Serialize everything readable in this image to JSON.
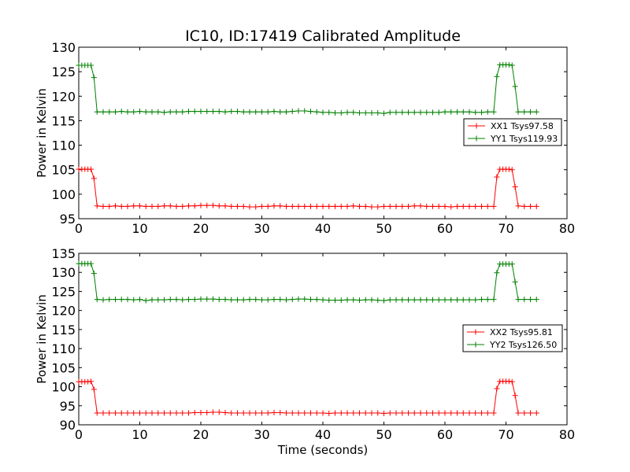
{
  "figure": {
    "title": "IC10, ID:17419 Calibrated Amplitude"
  },
  "chart_data": [
    {
      "type": "line",
      "title": "IC10, ID:17419 Calibrated Amplitude",
      "xlabel": "",
      "ylabel": "Power in Kelvin",
      "xlim": [
        0,
        80
      ],
      "ylim": [
        95,
        130
      ],
      "xticks": [
        0,
        10,
        20,
        30,
        40,
        50,
        60,
        70,
        80
      ],
      "yticks": [
        95,
        100,
        105,
        110,
        115,
        120,
        125,
        130
      ],
      "grid": false,
      "legend_position": "right",
      "series": [
        {
          "name": "XX1 Tsys97.58",
          "color": "#ff0000",
          "marker": "plus",
          "x": [
            0,
            0.5,
            1,
            1.5,
            2,
            2.5,
            3,
            4,
            5,
            6,
            7,
            8,
            9,
            10,
            11,
            12,
            13,
            14,
            15,
            16,
            17,
            18,
            19,
            20,
            21,
            22,
            23,
            24,
            25,
            26,
            27,
            28,
            29,
            30,
            31,
            32,
            33,
            34,
            35,
            36,
            37,
            38,
            39,
            40,
            41,
            42,
            43,
            44,
            45,
            46,
            47,
            48,
            49,
            50,
            51,
            52,
            53,
            54,
            55,
            56,
            57,
            58,
            59,
            60,
            61,
            62,
            63,
            64,
            65,
            66,
            67,
            68,
            68.5,
            69,
            69.5,
            70,
            70.5,
            71,
            71.5,
            72,
            73,
            74,
            75
          ],
          "y": [
            105.1,
            105.1,
            105.1,
            105.1,
            105.1,
            103.2,
            97.6,
            97.5,
            97.5,
            97.6,
            97.5,
            97.5,
            97.6,
            97.6,
            97.5,
            97.5,
            97.5,
            97.6,
            97.6,
            97.5,
            97.5,
            97.6,
            97.6,
            97.7,
            97.7,
            97.7,
            97.6,
            97.6,
            97.5,
            97.5,
            97.5,
            97.4,
            97.4,
            97.5,
            97.5,
            97.6,
            97.6,
            97.5,
            97.5,
            97.5,
            97.5,
            97.5,
            97.5,
            97.5,
            97.5,
            97.5,
            97.5,
            97.5,
            97.6,
            97.5,
            97.5,
            97.4,
            97.4,
            97.5,
            97.5,
            97.5,
            97.5,
            97.5,
            97.6,
            97.6,
            97.5,
            97.5,
            97.5,
            97.5,
            97.4,
            97.5,
            97.5,
            97.5,
            97.5,
            97.5,
            97.5,
            97.5,
            103.5,
            105.1,
            105.1,
            105.1,
            105.1,
            105.0,
            101.5,
            97.6,
            97.5,
            97.5,
            97.5
          ]
        },
        {
          "name": "YY1 Tsys119.93",
          "color": "#008000",
          "marker": "plus",
          "x": [
            0,
            0.5,
            1,
            1.5,
            2,
            2.5,
            3,
            4,
            5,
            6,
            7,
            8,
            9,
            10,
            11,
            12,
            13,
            14,
            15,
            16,
            17,
            18,
            19,
            20,
            21,
            22,
            23,
            24,
            25,
            26,
            27,
            28,
            29,
            30,
            31,
            32,
            33,
            34,
            35,
            36,
            37,
            38,
            39,
            40,
            41,
            42,
            43,
            44,
            45,
            46,
            47,
            48,
            49,
            50,
            51,
            52,
            53,
            54,
            55,
            56,
            57,
            58,
            59,
            60,
            61,
            62,
            63,
            64,
            65,
            66,
            67,
            68,
            68.5,
            69,
            69.5,
            70,
            70.5,
            71,
            71.5,
            72,
            73,
            74,
            75
          ],
          "y": [
            126.3,
            126.3,
            126.3,
            126.3,
            126.3,
            123.8,
            116.8,
            116.8,
            116.8,
            116.8,
            116.9,
            116.8,
            116.8,
            116.9,
            116.8,
            116.8,
            116.8,
            116.7,
            116.8,
            116.8,
            116.8,
            116.9,
            116.9,
            116.9,
            116.9,
            116.9,
            116.9,
            116.8,
            116.9,
            116.9,
            116.8,
            116.8,
            116.8,
            116.8,
            116.8,
            116.9,
            116.8,
            116.8,
            116.9,
            117.0,
            117.0,
            116.9,
            116.8,
            116.7,
            116.7,
            116.6,
            116.6,
            116.7,
            116.7,
            116.6,
            116.6,
            116.6,
            116.6,
            116.5,
            116.7,
            116.7,
            116.7,
            116.7,
            116.7,
            116.7,
            116.7,
            116.7,
            116.7,
            116.8,
            116.8,
            116.8,
            116.8,
            116.8,
            116.7,
            116.7,
            116.8,
            116.8,
            124.0,
            126.4,
            126.4,
            126.4,
            126.4,
            126.3,
            122.0,
            116.8,
            116.8,
            116.8,
            116.8
          ]
        }
      ]
    },
    {
      "type": "line",
      "title": "",
      "xlabel": "Time (seconds)",
      "ylabel": "Power in Kelvin",
      "xlim": [
        0,
        80
      ],
      "ylim": [
        90,
        135
      ],
      "xticks": [
        0,
        10,
        20,
        30,
        40,
        50,
        60,
        70,
        80
      ],
      "yticks": [
        90,
        95,
        100,
        105,
        110,
        115,
        120,
        125,
        130,
        135
      ],
      "grid": false,
      "legend_position": "right",
      "series": [
        {
          "name": "XX2 Tsys95.81",
          "color": "#ff0000",
          "marker": "plus",
          "x": [
            0,
            0.5,
            1,
            1.5,
            2,
            2.5,
            3,
            4,
            5,
            6,
            7,
            8,
            9,
            10,
            11,
            12,
            13,
            14,
            15,
            16,
            17,
            18,
            19,
            20,
            21,
            22,
            23,
            24,
            25,
            26,
            27,
            28,
            29,
            30,
            31,
            32,
            33,
            34,
            35,
            36,
            37,
            38,
            39,
            40,
            41,
            42,
            43,
            44,
            45,
            46,
            47,
            48,
            49,
            50,
            51,
            52,
            53,
            54,
            55,
            56,
            57,
            58,
            59,
            60,
            61,
            62,
            63,
            64,
            65,
            66,
            67,
            68,
            68.5,
            69,
            69.5,
            70,
            70.5,
            71,
            71.5,
            72,
            73,
            74,
            75
          ],
          "y": [
            101.3,
            101.3,
            101.3,
            101.3,
            101.4,
            99.3,
            93.1,
            93.1,
            93.1,
            93.1,
            93.1,
            93.1,
            93.1,
            93.1,
            93.1,
            93.1,
            93.1,
            93.1,
            93.1,
            93.1,
            93.1,
            93.1,
            93.2,
            93.2,
            93.2,
            93.3,
            93.3,
            93.2,
            93.1,
            93.1,
            93.1,
            93.1,
            93.1,
            93.1,
            93.1,
            93.2,
            93.2,
            93.1,
            93.1,
            93.1,
            93.1,
            93.1,
            93.1,
            93.1,
            93.0,
            93.1,
            93.1,
            93.1,
            93.1,
            93.1,
            93.1,
            93.1,
            93.1,
            93.0,
            93.1,
            93.1,
            93.1,
            93.1,
            93.1,
            93.1,
            93.1,
            93.1,
            93.1,
            93.1,
            93.1,
            93.1,
            93.1,
            93.1,
            93.1,
            93.1,
            93.1,
            93.1,
            99.5,
            101.4,
            101.4,
            101.4,
            101.4,
            101.3,
            97.7,
            93.1,
            93.1,
            93.1,
            93.1
          ]
        },
        {
          "name": "YY2 Tsys126.50",
          "color": "#008000",
          "marker": "plus",
          "x": [
            0,
            0.5,
            1,
            1.5,
            2,
            2.5,
            3,
            4,
            5,
            6,
            7,
            8,
            9,
            10,
            11,
            12,
            13,
            14,
            15,
            16,
            17,
            18,
            19,
            20,
            21,
            22,
            23,
            24,
            25,
            26,
            27,
            28,
            29,
            30,
            31,
            32,
            33,
            34,
            35,
            36,
            37,
            38,
            39,
            40,
            41,
            42,
            43,
            44,
            45,
            46,
            47,
            48,
            49,
            50,
            51,
            52,
            53,
            54,
            55,
            56,
            57,
            58,
            59,
            60,
            61,
            62,
            63,
            64,
            65,
            66,
            67,
            68,
            68.5,
            69,
            69.5,
            70,
            70.5,
            71,
            71.5,
            72,
            73,
            74,
            75
          ],
          "y": [
            132.3,
            132.3,
            132.3,
            132.3,
            132.3,
            129.7,
            122.9,
            122.8,
            122.9,
            122.9,
            122.9,
            122.9,
            122.8,
            122.9,
            122.6,
            122.8,
            122.8,
            122.8,
            122.9,
            122.9,
            122.8,
            122.9,
            122.9,
            123.0,
            123.0,
            123.0,
            122.9,
            122.9,
            122.8,
            122.8,
            122.8,
            122.9,
            122.9,
            122.8,
            122.8,
            122.9,
            122.9,
            122.8,
            122.9,
            123.0,
            123.0,
            122.9,
            122.9,
            122.8,
            122.7,
            122.7,
            122.7,
            122.8,
            122.8,
            122.7,
            122.8,
            122.8,
            122.7,
            122.6,
            122.8,
            122.8,
            122.8,
            122.8,
            122.8,
            122.8,
            122.8,
            122.8,
            122.8,
            122.8,
            122.8,
            122.8,
            122.8,
            122.8,
            122.8,
            122.9,
            122.9,
            122.9,
            129.9,
            132.2,
            132.2,
            132.2,
            132.2,
            132.2,
            127.5,
            122.9,
            122.9,
            122.9,
            122.9
          ]
        }
      ]
    }
  ]
}
